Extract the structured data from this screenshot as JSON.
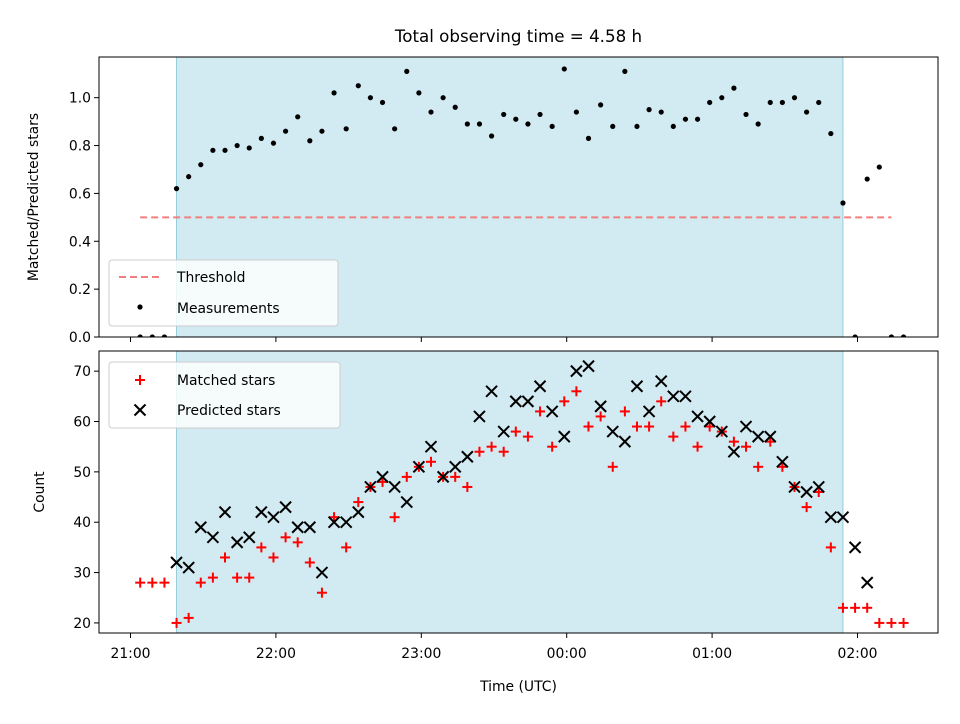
{
  "title": "Total observing time = 4.58 h",
  "colors": {
    "shade": "#add8e6",
    "threshold": "#f08080",
    "measurement": "#000000",
    "matched": "#ff0000",
    "predicted": "#000000"
  },
  "chart_data": [
    {
      "type": "scatter",
      "ylabel": "Matched/Predicted stars",
      "ylim": [
        0,
        1.17
      ],
      "yticks": [
        "0.0",
        "0.2",
        "0.4",
        "0.6",
        "0.8",
        "1.0"
      ],
      "ytick_values": [
        0,
        0.2,
        0.4,
        0.6,
        0.8,
        1.0
      ],
      "shaded_region": {
        "from": "21:19",
        "to": "01:54"
      },
      "legend": {
        "position": "lower-left",
        "entries": [
          "Threshold",
          "Measurements"
        ]
      },
      "threshold": {
        "name": "Threshold",
        "y": 0.5,
        "from": "21:04",
        "to": "02:14",
        "style": "dashed"
      },
      "series": [
        {
          "name": "Measurements",
          "x": [
            "21:04",
            "21:09",
            "21:14",
            "21:19",
            "21:24",
            "21:29",
            "21:34",
            "21:39",
            "21:44",
            "21:49",
            "21:54",
            "21:59",
            "22:04",
            "22:09",
            "22:14",
            "22:19",
            "22:24",
            "22:29",
            "22:34",
            "22:39",
            "22:44",
            "22:49",
            "22:54",
            "22:59",
            "23:04",
            "23:09",
            "23:14",
            "23:19",
            "23:24",
            "23:29",
            "23:34",
            "23:39",
            "23:44",
            "23:49",
            "23:54",
            "23:59",
            "00:04",
            "00:09",
            "00:14",
            "00:19",
            "00:24",
            "00:29",
            "00:34",
            "00:39",
            "00:44",
            "00:49",
            "00:54",
            "00:59",
            "01:04",
            "01:09",
            "01:14",
            "01:19",
            "01:24",
            "01:29",
            "01:34",
            "01:39",
            "01:44",
            "01:49",
            "01:54",
            "01:59",
            "02:04",
            "02:09",
            "02:14",
            "02:19"
          ],
          "y": [
            0.0,
            0.0,
            0.0,
            0.62,
            0.67,
            0.72,
            0.78,
            0.78,
            0.8,
            0.79,
            0.83,
            0.81,
            0.86,
            0.92,
            0.82,
            0.86,
            1.02,
            0.87,
            1.05,
            1.0,
            0.98,
            0.87,
            1.11,
            1.02,
            0.94,
            1.0,
            0.96,
            0.89,
            0.89,
            0.84,
            0.93,
            0.91,
            0.89,
            0.93,
            0.88,
            1.12,
            0.94,
            0.83,
            0.97,
            0.88,
            1.11,
            0.88,
            0.95,
            0.94,
            0.88,
            0.91,
            0.91,
            0.98,
            1.0,
            1.04,
            0.93,
            0.89,
            0.98,
            0.98,
            1.0,
            0.94,
            0.98,
            0.85,
            0.56,
            0.0,
            0.66,
            0.71,
            0.0,
            0.0
          ]
        }
      ]
    },
    {
      "type": "scatter",
      "ylabel": "Count",
      "xlabel": "Time (UTC)",
      "ylim": [
        18,
        74
      ],
      "yticks": [
        "20",
        "30",
        "40",
        "50",
        "60",
        "70"
      ],
      "ytick_values": [
        20,
        30,
        40,
        50,
        60,
        70
      ],
      "xticks": [
        "21:00",
        "22:00",
        "23:00",
        "00:00",
        "01:00",
        "02:00"
      ],
      "xlim": [
        "20:53",
        "02:38"
      ],
      "shaded_region": {
        "from": "21:19",
        "to": "01:54"
      },
      "legend": {
        "position": "upper-left",
        "entries": [
          "Matched stars",
          "Predicted stars"
        ]
      },
      "series": [
        {
          "name": "Matched stars",
          "marker": "plus",
          "x": [
            "21:04",
            "21:09",
            "21:14",
            "21:19",
            "21:24",
            "21:29",
            "21:34",
            "21:39",
            "21:44",
            "21:49",
            "21:54",
            "21:59",
            "22:04",
            "22:09",
            "22:14",
            "22:19",
            "22:24",
            "22:29",
            "22:34",
            "22:39",
            "22:44",
            "22:49",
            "22:54",
            "22:59",
            "23:04",
            "23:09",
            "23:14",
            "23:19",
            "23:24",
            "23:29",
            "23:34",
            "23:39",
            "23:44",
            "23:49",
            "23:54",
            "23:59",
            "00:04",
            "00:09",
            "00:14",
            "00:19",
            "00:24",
            "00:29",
            "00:34",
            "00:39",
            "00:44",
            "00:49",
            "00:54",
            "00:59",
            "01:04",
            "01:09",
            "01:14",
            "01:19",
            "01:24",
            "01:29",
            "01:34",
            "01:39",
            "01:44",
            "01:49",
            "01:54",
            "01:59",
            "02:04",
            "02:09",
            "02:14",
            "02:19"
          ],
          "y": [
            28,
            28,
            28,
            20,
            21,
            28,
            29,
            33,
            29,
            29,
            35,
            33,
            37,
            36,
            32,
            26,
            41,
            35,
            44,
            47,
            48,
            41,
            49,
            51,
            52,
            49,
            49,
            47,
            54,
            55,
            54,
            58,
            57,
            62,
            55,
            64,
            66,
            59,
            61,
            51,
            62,
            59,
            59,
            64,
            57,
            59,
            55,
            59,
            58,
            56,
            55,
            51,
            56,
            51,
            47,
            43,
            46,
            35,
            23,
            23,
            23,
            20,
            20,
            20
          ]
        },
        {
          "name": "Predicted stars",
          "marker": "x",
          "x": [
            "21:19",
            "21:24",
            "21:29",
            "21:34",
            "21:39",
            "21:44",
            "21:49",
            "21:54",
            "21:59",
            "22:04",
            "22:09",
            "22:14",
            "22:19",
            "22:24",
            "22:29",
            "22:34",
            "22:39",
            "22:44",
            "22:49",
            "22:54",
            "22:59",
            "23:04",
            "23:09",
            "23:14",
            "23:19",
            "23:24",
            "23:29",
            "23:34",
            "23:39",
            "23:44",
            "23:49",
            "23:54",
            "23:59",
            "00:04",
            "00:09",
            "00:14",
            "00:19",
            "00:24",
            "00:29",
            "00:34",
            "00:39",
            "00:44",
            "00:49",
            "00:54",
            "00:59",
            "01:04",
            "01:09",
            "01:14",
            "01:19",
            "01:24",
            "01:29",
            "01:34",
            "01:39",
            "01:44",
            "01:49",
            "01:54",
            "01:59",
            "02:04"
          ],
          "y": [
            32,
            31,
            39,
            37,
            42,
            36,
            37,
            42,
            41,
            43,
            39,
            39,
            30,
            40,
            40,
            42,
            47,
            49,
            47,
            44,
            51,
            55,
            49,
            51,
            53,
            61,
            66,
            58,
            64,
            64,
            67,
            62,
            57,
            70,
            71,
            63,
            58,
            56,
            67,
            62,
            68,
            65,
            65,
            61,
            60,
            58,
            54,
            59,
            57,
            57,
            52,
            47,
            46,
            47,
            41,
            41,
            35,
            28
          ]
        }
      ]
    }
  ]
}
